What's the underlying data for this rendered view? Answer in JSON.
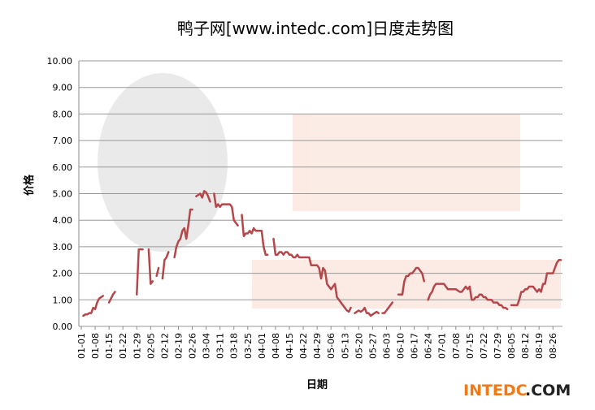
{
  "chart_data": {
    "type": "line",
    "title": "鸭子网[www.intedc.com]日度走势图",
    "x_label": "日期",
    "y_label": "价格",
    "brand_main": "INTEDC",
    "brand_tld": ".COM",
    "grid": true,
    "color": "#b5464a",
    "ylim": [
      0,
      10
    ],
    "yticks": [
      {
        "value": 0,
        "label": "0.00"
      },
      {
        "value": 1,
        "label": "1.00"
      },
      {
        "value": 2,
        "label": "2.00"
      },
      {
        "value": 3,
        "label": "3.00"
      },
      {
        "value": 4,
        "label": "4.00"
      },
      {
        "value": 5,
        "label": "5.00"
      },
      {
        "value": 6,
        "label": "6.00"
      },
      {
        "value": 7,
        "label": "7.00"
      },
      {
        "value": 8,
        "label": "8.00"
      },
      {
        "value": 9,
        "label": "9.00"
      },
      {
        "value": 10,
        "label": "10.00"
      }
    ],
    "categories": [
      "01-01",
      null,
      null,
      null,
      null,
      null,
      null,
      "01-08",
      null,
      null,
      null,
      null,
      null,
      null,
      "01-15",
      null,
      null,
      null,
      null,
      null,
      null,
      "01-22",
      null,
      null,
      null,
      null,
      null,
      null,
      "01-29",
      null,
      null,
      null,
      null,
      null,
      null,
      "02-05",
      null,
      null,
      null,
      null,
      null,
      null,
      "02-12",
      null,
      null,
      null,
      null,
      null,
      null,
      "02-19",
      null,
      null,
      null,
      null,
      null,
      null,
      "02-26",
      null,
      null,
      null,
      null,
      null,
      null,
      "03-04",
      null,
      null,
      null,
      null,
      null,
      null,
      "03-11",
      null,
      null,
      null,
      null,
      null,
      null,
      "03-18",
      null,
      null,
      null,
      null,
      null,
      null,
      "03-25",
      null,
      null,
      null,
      null,
      null,
      null,
      "04-01",
      null,
      null,
      null,
      null,
      null,
      null,
      "04-08",
      null,
      null,
      null,
      null,
      null,
      null,
      "04-15",
      null,
      null,
      null,
      null,
      null,
      null,
      "04-22",
      null,
      null,
      null,
      null,
      null,
      null,
      "04-29",
      null,
      null,
      null,
      null,
      null,
      null,
      "05-06",
      null,
      null,
      null,
      null,
      null,
      null,
      "05-13",
      null,
      null,
      null,
      null,
      null,
      null,
      "05-20",
      null,
      null,
      null,
      null,
      null,
      null,
      "05-27",
      null,
      null,
      null,
      null,
      null,
      null,
      "06-03",
      null,
      null,
      null,
      null,
      null,
      null,
      "06-10",
      null,
      null,
      null,
      null,
      null,
      null,
      "06-17",
      null,
      null,
      null,
      null,
      null,
      null,
      "06-24",
      null,
      null,
      null,
      null,
      null,
      null,
      "07-01",
      null,
      null,
      null,
      null,
      null,
      null,
      "07-08",
      null,
      null,
      null,
      null,
      null,
      null,
      "07-15",
      null,
      null,
      null,
      null,
      null,
      null,
      "07-22",
      null,
      null,
      null,
      null,
      null,
      null,
      "07-29",
      null,
      null,
      null,
      null,
      null,
      null,
      "08-05",
      null,
      null,
      null,
      null,
      null,
      null,
      "08-12",
      null,
      null,
      null,
      null,
      null,
      null,
      "08-19",
      null,
      null,
      null,
      null,
      null,
      null,
      "08-26",
      null,
      null,
      null,
      null
    ],
    "values": [
      null,
      0.4,
      0.45,
      0.45,
      0.5,
      0.5,
      0.7,
      0.65,
      0.9,
      1.05,
      1.1,
      1.15,
      null,
      null,
      0.9,
      1.05,
      1.2,
      1.3,
      null,
      null,
      null,
      null,
      null,
      null,
      null,
      null,
      null,
      null,
      1.2,
      2.9,
      2.9,
      2.9,
      null,
      null,
      2.9,
      1.6,
      1.7,
      null,
      1.9,
      2.2,
      null,
      1.8,
      2.5,
      2.6,
      2.8,
      null,
      null,
      2.6,
      3.0,
      3.2,
      3.3,
      3.6,
      3.7,
      3.3,
      3.8,
      4.4,
      4.4,
      null,
      4.9,
      4.95,
      5.0,
      4.85,
      5.1,
      5.05,
      4.9,
      4.7,
      null,
      5.0,
      4.5,
      4.6,
      4.5,
      4.6,
      4.6,
      4.6,
      4.6,
      4.6,
      4.5,
      4.0,
      3.9,
      3.8,
      null,
      4.2,
      3.4,
      3.5,
      3.5,
      3.6,
      3.5,
      3.7,
      3.6,
      3.6,
      3.6,
      3.6,
      3.0,
      2.7,
      2.7,
      null,
      null,
      3.3,
      2.7,
      2.7,
      2.8,
      2.8,
      2.7,
      2.8,
      2.8,
      2.7,
      2.7,
      2.6,
      2.6,
      2.7,
      2.6,
      2.6,
      2.6,
      2.6,
      2.6,
      2.6,
      2.3,
      2.3,
      2.3,
      2.3,
      2.2,
      1.8,
      2.2,
      2.1,
      1.6,
      1.5,
      1.4,
      1.5,
      1.6,
      1.1,
      1.0,
      0.9,
      0.8,
      0.7,
      0.6,
      0.55,
      0.7,
      null,
      0.5,
      0.55,
      0.6,
      0.55,
      0.6,
      0.7,
      0.5,
      0.5,
      0.4,
      0.45,
      0.5,
      0.55,
      0.5,
      null,
      0.5,
      0.5,
      0.6,
      0.7,
      0.8,
      0.9,
      null,
      null,
      1.2,
      1.2,
      1.2,
      1.7,
      1.9,
      1.9,
      2.0,
      2.0,
      2.1,
      2.2,
      2.2,
      2.1,
      2.0,
      1.7,
      null,
      1.0,
      1.2,
      1.3,
      1.5,
      1.6,
      1.6,
      1.6,
      1.6,
      1.6,
      1.5,
      1.4,
      1.4,
      1.4,
      1.4,
      1.4,
      1.35,
      1.3,
      1.3,
      1.4,
      1.5,
      1.4,
      1.5,
      1.0,
      1.0,
      1.1,
      1.1,
      1.2,
      1.2,
      1.1,
      1.1,
      1.0,
      1.0,
      1.0,
      0.9,
      0.9,
      0.9,
      0.8,
      0.8,
      0.7,
      0.7,
      0.65,
      null,
      0.8,
      0.8,
      0.8,
      0.8,
      1.0,
      1.3,
      1.3,
      1.4,
      1.4,
      1.5,
      1.5,
      1.5,
      1.4,
      1.3,
      1.4,
      1.3,
      1.6,
      1.6,
      2.0,
      2.0,
      2.0,
      2.0,
      2.2,
      2.4,
      2.5,
      2.5
    ]
  }
}
